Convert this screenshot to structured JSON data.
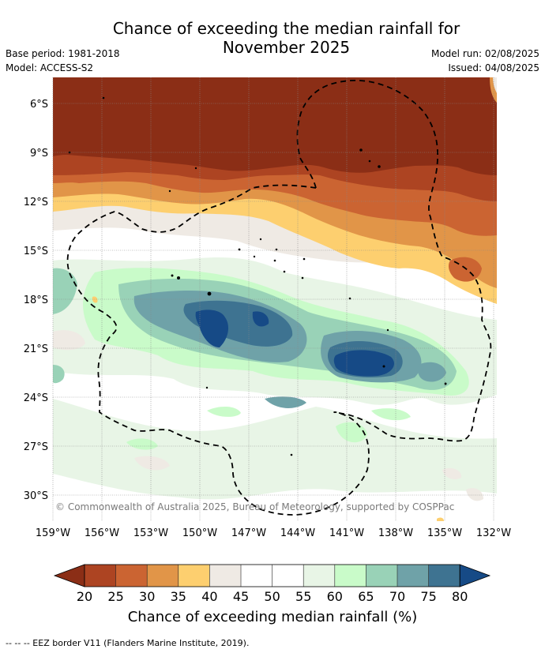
{
  "title": {
    "line1": "Chance of exceeding the median rainfall for",
    "line2": "November 2025"
  },
  "meta": {
    "base_period": "Base period: 1981-2018",
    "model": "Model: ACCESS-S2",
    "model_run": "Model run: 02/08/2025",
    "issued": "Issued: 04/08/2025"
  },
  "map": {
    "lat_labels": [
      "6°S",
      "9°S",
      "12°S",
      "15°S",
      "18°S",
      "21°S",
      "24°S",
      "27°S",
      "30°S"
    ],
    "lon_labels": [
      "159°W",
      "156°W",
      "153°W",
      "150°W",
      "147°W",
      "144°W",
      "141°W",
      "138°W",
      "135°W",
      "132°W"
    ],
    "copyright": "© Commonwealth of Australia 2025, Bureau of Meteorology, supported by COSPPac",
    "colors": {
      "c20": "#8b2e16",
      "c25": "#ad4422",
      "c30": "#cb6432",
      "c35": "#e19548",
      "c40": "#fdcf6f",
      "c45": "#efeae4",
      "c50": "#ffffff",
      "c55": "#ffffff",
      "c60": "#e8f5e6",
      "c65": "#c9fbc9",
      "c70": "#99d2b7",
      "c75": "#6fa2a8",
      "c80": "#3e7391",
      "c85": "#164a86"
    }
  },
  "colorbar": {
    "ticks": [
      "20",
      "25",
      "30",
      "35",
      "40",
      "45",
      "50",
      "55",
      "60",
      "65",
      "70",
      "75",
      "80"
    ],
    "label": "Chance of exceeding median rainfall (%)"
  },
  "footer": "--  --  -- EEZ border V11 (Flanders Marine Institute, 2019)."
}
